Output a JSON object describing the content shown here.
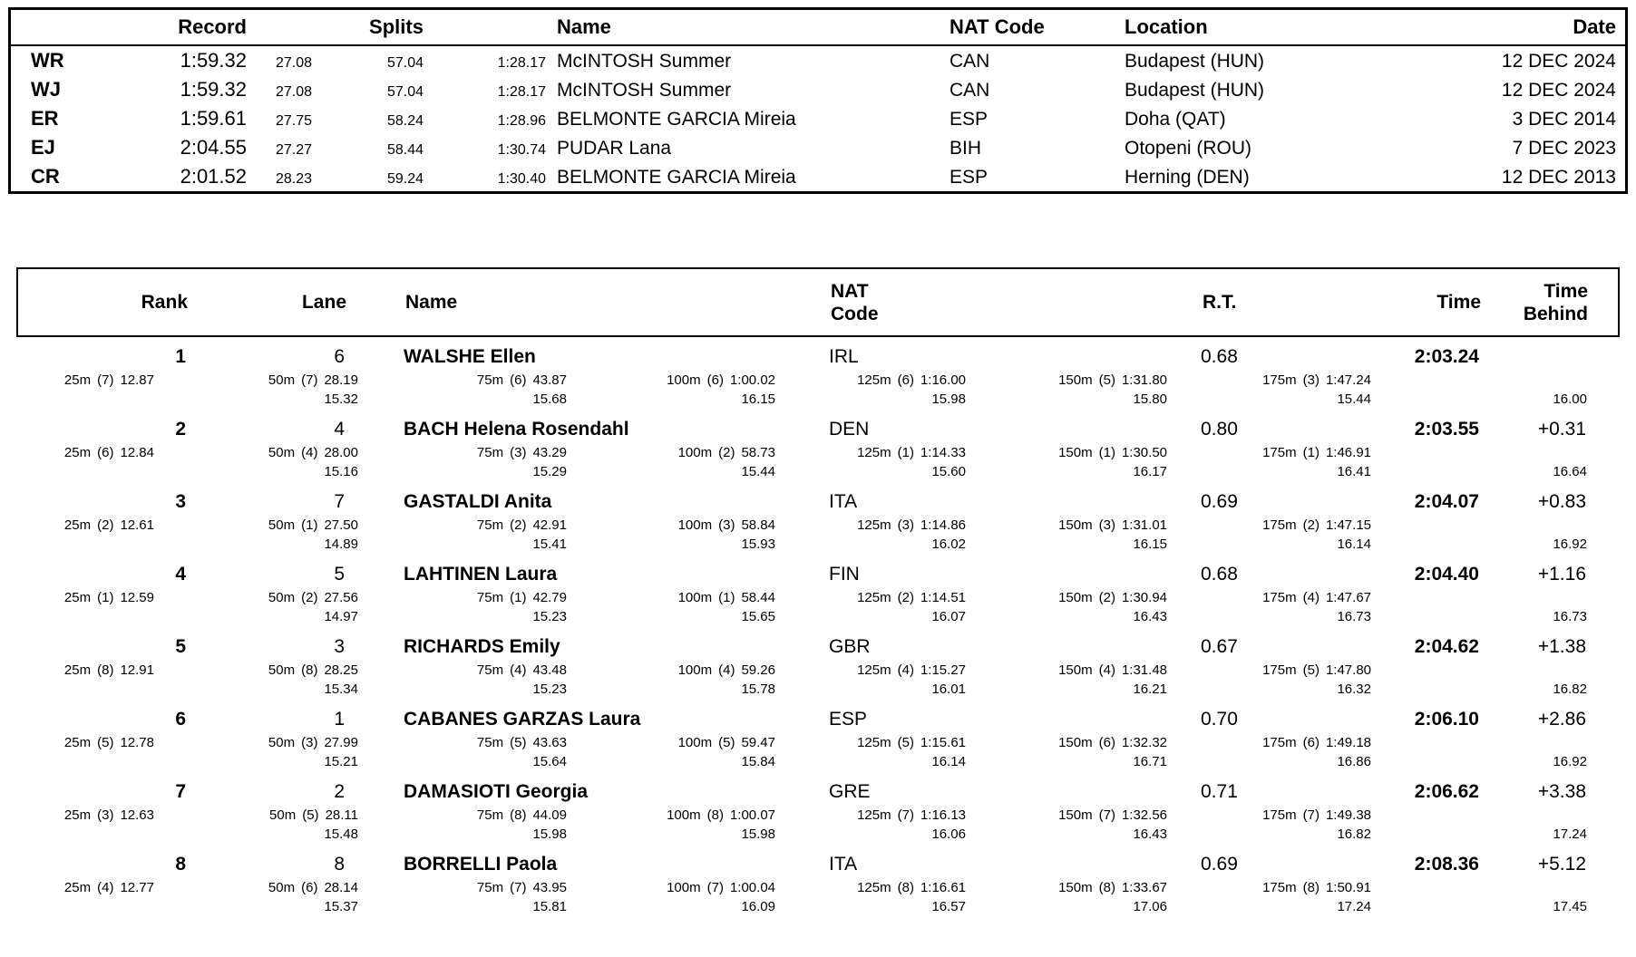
{
  "records_table": {
    "headers": {
      "record": "Record",
      "splits": "Splits",
      "name": "Name",
      "nat_code": "NAT Code",
      "location": "Location",
      "date": "Date"
    },
    "rows": [
      {
        "tag": "WR",
        "time": "1:59.32",
        "split50": "27.08",
        "split100": "57.04",
        "split150": "1:28.17",
        "name": "McINTOSH Summer",
        "nat": "CAN",
        "location": "Budapest (HUN)",
        "date": "12 DEC 2024"
      },
      {
        "tag": "WJ",
        "time": "1:59.32",
        "split50": "27.08",
        "split100": "57.04",
        "split150": "1:28.17",
        "name": "McINTOSH Summer",
        "nat": "CAN",
        "location": "Budapest (HUN)",
        "date": "12 DEC 2024"
      },
      {
        "tag": "ER",
        "time": "1:59.61",
        "split50": "27.75",
        "split100": "58.24",
        "split150": "1:28.96",
        "name": "BELMONTE GARCIA Mireia",
        "nat": "ESP",
        "location": "Doha (QAT)",
        "date": "3 DEC 2014"
      },
      {
        "tag": "EJ",
        "time": "2:04.55",
        "split50": "27.27",
        "split100": "58.44",
        "split150": "1:30.74",
        "name": "PUDAR Lana",
        "nat": "BIH",
        "location": "Otopeni (ROU)",
        "date": "7 DEC 2023"
      },
      {
        "tag": "CR",
        "time": "2:01.52",
        "split50": "28.23",
        "split100": "59.24",
        "split150": "1:30.40",
        "name": "BELMONTE GARCIA Mireia",
        "nat": "ESP",
        "location": "Herning (DEN)",
        "date": "12 DEC 2013"
      }
    ]
  },
  "results_table": {
    "headers": {
      "rank": "Rank",
      "lane": "Lane",
      "name": "Name",
      "nat_code": "NAT Code",
      "rt": "R.T.",
      "time": "Time",
      "behind": "Time Behind"
    },
    "rows": [
      {
        "rank": "1",
        "lane": "6",
        "name": "WALSHE Ellen",
        "nat": "IRL",
        "rt": "0.68",
        "time": "2:03.24",
        "behind": "",
        "splits": [
          {
            "d": "25m",
            "p": "(7)",
            "t": "12.87",
            "s": ""
          },
          {
            "d": "50m",
            "p": "(7)",
            "t": "28.19",
            "s": "15.32"
          },
          {
            "d": "75m",
            "p": "(6)",
            "t": "43.87",
            "s": "15.68"
          },
          {
            "d": "100m",
            "p": "(6)",
            "t": "1:00.02",
            "s": "16.15"
          },
          {
            "d": "125m",
            "p": "(6)",
            "t": "1:16.00",
            "s": "15.98"
          },
          {
            "d": "150m",
            "p": "(5)",
            "t": "1:31.80",
            "s": "15.80"
          },
          {
            "d": "175m",
            "p": "(3)",
            "t": "1:47.24",
            "s": "15.44"
          },
          {
            "d": "",
            "p": "",
            "t": "",
            "s": "16.00"
          }
        ]
      },
      {
        "rank": "2",
        "lane": "4",
        "name": "BACH Helena Rosendahl",
        "nat": "DEN",
        "rt": "0.80",
        "time": "2:03.55",
        "behind": "+0.31",
        "splits": [
          {
            "d": "25m",
            "p": "(6)",
            "t": "12.84",
            "s": ""
          },
          {
            "d": "50m",
            "p": "(4)",
            "t": "28.00",
            "s": "15.16"
          },
          {
            "d": "75m",
            "p": "(3)",
            "t": "43.29",
            "s": "15.29"
          },
          {
            "d": "100m",
            "p": "(2)",
            "t": "58.73",
            "s": "15.44"
          },
          {
            "d": "125m",
            "p": "(1)",
            "t": "1:14.33",
            "s": "15.60"
          },
          {
            "d": "150m",
            "p": "(1)",
            "t": "1:30.50",
            "s": "16.17"
          },
          {
            "d": "175m",
            "p": "(1)",
            "t": "1:46.91",
            "s": "16.41"
          },
          {
            "d": "",
            "p": "",
            "t": "",
            "s": "16.64"
          }
        ]
      },
      {
        "rank": "3",
        "lane": "7",
        "name": "GASTALDI Anita",
        "nat": "ITA",
        "rt": "0.69",
        "time": "2:04.07",
        "behind": "+0.83",
        "splits": [
          {
            "d": "25m",
            "p": "(2)",
            "t": "12.61",
            "s": ""
          },
          {
            "d": "50m",
            "p": "(1)",
            "t": "27.50",
            "s": "14.89"
          },
          {
            "d": "75m",
            "p": "(2)",
            "t": "42.91",
            "s": "15.41"
          },
          {
            "d": "100m",
            "p": "(3)",
            "t": "58.84",
            "s": "15.93"
          },
          {
            "d": "125m",
            "p": "(3)",
            "t": "1:14.86",
            "s": "16.02"
          },
          {
            "d": "150m",
            "p": "(3)",
            "t": "1:31.01",
            "s": "16.15"
          },
          {
            "d": "175m",
            "p": "(2)",
            "t": "1:47.15",
            "s": "16.14"
          },
          {
            "d": "",
            "p": "",
            "t": "",
            "s": "16.92"
          }
        ]
      },
      {
        "rank": "4",
        "lane": "5",
        "name": "LAHTINEN Laura",
        "nat": "FIN",
        "rt": "0.68",
        "time": "2:04.40",
        "behind": "+1.16",
        "splits": [
          {
            "d": "25m",
            "p": "(1)",
            "t": "12.59",
            "s": ""
          },
          {
            "d": "50m",
            "p": "(2)",
            "t": "27.56",
            "s": "14.97"
          },
          {
            "d": "75m",
            "p": "(1)",
            "t": "42.79",
            "s": "15.23"
          },
          {
            "d": "100m",
            "p": "(1)",
            "t": "58.44",
            "s": "15.65"
          },
          {
            "d": "125m",
            "p": "(2)",
            "t": "1:14.51",
            "s": "16.07"
          },
          {
            "d": "150m",
            "p": "(2)",
            "t": "1:30.94",
            "s": "16.43"
          },
          {
            "d": "175m",
            "p": "(4)",
            "t": "1:47.67",
            "s": "16.73"
          },
          {
            "d": "",
            "p": "",
            "t": "",
            "s": "16.73"
          }
        ]
      },
      {
        "rank": "5",
        "lane": "3",
        "name": "RICHARDS Emily",
        "nat": "GBR",
        "rt": "0.67",
        "time": "2:04.62",
        "behind": "+1.38",
        "splits": [
          {
            "d": "25m",
            "p": "(8)",
            "t": "12.91",
            "s": ""
          },
          {
            "d": "50m",
            "p": "(8)",
            "t": "28.25",
            "s": "15.34"
          },
          {
            "d": "75m",
            "p": "(4)",
            "t": "43.48",
            "s": "15.23"
          },
          {
            "d": "100m",
            "p": "(4)",
            "t": "59.26",
            "s": "15.78"
          },
          {
            "d": "125m",
            "p": "(4)",
            "t": "1:15.27",
            "s": "16.01"
          },
          {
            "d": "150m",
            "p": "(4)",
            "t": "1:31.48",
            "s": "16.21"
          },
          {
            "d": "175m",
            "p": "(5)",
            "t": "1:47.80",
            "s": "16.32"
          },
          {
            "d": "",
            "p": "",
            "t": "",
            "s": "16.82"
          }
        ]
      },
      {
        "rank": "6",
        "lane": "1",
        "name": "CABANES GARZAS Laura",
        "nat": "ESP",
        "rt": "0.70",
        "time": "2:06.10",
        "behind": "+2.86",
        "splits": [
          {
            "d": "25m",
            "p": "(5)",
            "t": "12.78",
            "s": ""
          },
          {
            "d": "50m",
            "p": "(3)",
            "t": "27.99",
            "s": "15.21"
          },
          {
            "d": "75m",
            "p": "(5)",
            "t": "43.63",
            "s": "15.64"
          },
          {
            "d": "100m",
            "p": "(5)",
            "t": "59.47",
            "s": "15.84"
          },
          {
            "d": "125m",
            "p": "(5)",
            "t": "1:15.61",
            "s": "16.14"
          },
          {
            "d": "150m",
            "p": "(6)",
            "t": "1:32.32",
            "s": "16.71"
          },
          {
            "d": "175m",
            "p": "(6)",
            "t": "1:49.18",
            "s": "16.86"
          },
          {
            "d": "",
            "p": "",
            "t": "",
            "s": "16.92"
          }
        ]
      },
      {
        "rank": "7",
        "lane": "2",
        "name": "DAMASIOTI Georgia",
        "nat": "GRE",
        "rt": "0.71",
        "time": "2:06.62",
        "behind": "+3.38",
        "splits": [
          {
            "d": "25m",
            "p": "(3)",
            "t": "12.63",
            "s": ""
          },
          {
            "d": "50m",
            "p": "(5)",
            "t": "28.11",
            "s": "15.48"
          },
          {
            "d": "75m",
            "p": "(8)",
            "t": "44.09",
            "s": "15.98"
          },
          {
            "d": "100m",
            "p": "(8)",
            "t": "1:00.07",
            "s": "15.98"
          },
          {
            "d": "125m",
            "p": "(7)",
            "t": "1:16.13",
            "s": "16.06"
          },
          {
            "d": "150m",
            "p": "(7)",
            "t": "1:32.56",
            "s": "16.43"
          },
          {
            "d": "175m",
            "p": "(7)",
            "t": "1:49.38",
            "s": "16.82"
          },
          {
            "d": "",
            "p": "",
            "t": "",
            "s": "17.24"
          }
        ]
      },
      {
        "rank": "8",
        "lane": "8",
        "name": "BORRELLI Paola",
        "nat": "ITA",
        "rt": "0.69",
        "time": "2:08.36",
        "behind": "+5.12",
        "splits": [
          {
            "d": "25m",
            "p": "(4)",
            "t": "12.77",
            "s": ""
          },
          {
            "d": "50m",
            "p": "(6)",
            "t": "28.14",
            "s": "15.37"
          },
          {
            "d": "75m",
            "p": "(7)",
            "t": "43.95",
            "s": "15.81"
          },
          {
            "d": "100m",
            "p": "(7)",
            "t": "1:00.04",
            "s": "16.09"
          },
          {
            "d": "125m",
            "p": "(8)",
            "t": "1:16.61",
            "s": "16.57"
          },
          {
            "d": "150m",
            "p": "(8)",
            "t": "1:33.67",
            "s": "17.06"
          },
          {
            "d": "175m",
            "p": "(8)",
            "t": "1:50.91",
            "s": "17.24"
          },
          {
            "d": "",
            "p": "",
            "t": "",
            "s": "17.45"
          }
        ]
      }
    ]
  }
}
